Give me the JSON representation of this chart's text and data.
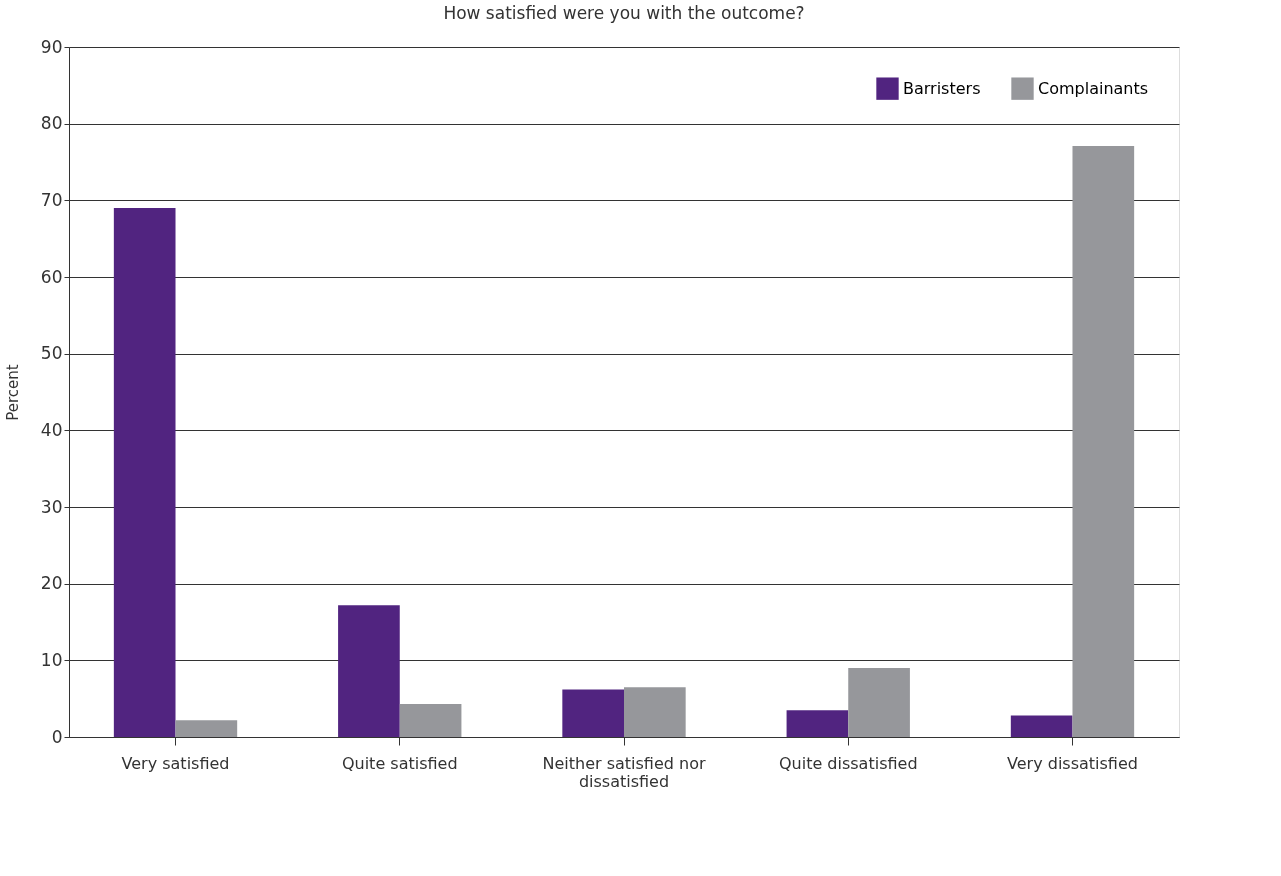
{
  "chart_data": {
    "type": "bar",
    "title": "How satisfied were you with the outcome?",
    "ylabel": "Percent",
    "categories": [
      "Very satisfied",
      "Quite satisfied",
      "Neither satisfied nor dissatisfied",
      "Quite dissatisfied",
      "Very dissatisfied"
    ],
    "series": [
      {
        "name": "Barristers",
        "color": "#512480",
        "values": [
          69,
          17.2,
          6.2,
          3.5,
          2.8
        ]
      },
      {
        "name": "Complainants",
        "color": "#96979b",
        "values": [
          2.2,
          4.3,
          6.5,
          9,
          77.1
        ]
      }
    ],
    "ylim": [
      0,
      90
    ],
    "yticks": [
      0,
      10,
      20,
      30,
      40,
      50,
      60,
      70,
      80,
      90
    ],
    "grid": "y",
    "legend": "top right"
  }
}
